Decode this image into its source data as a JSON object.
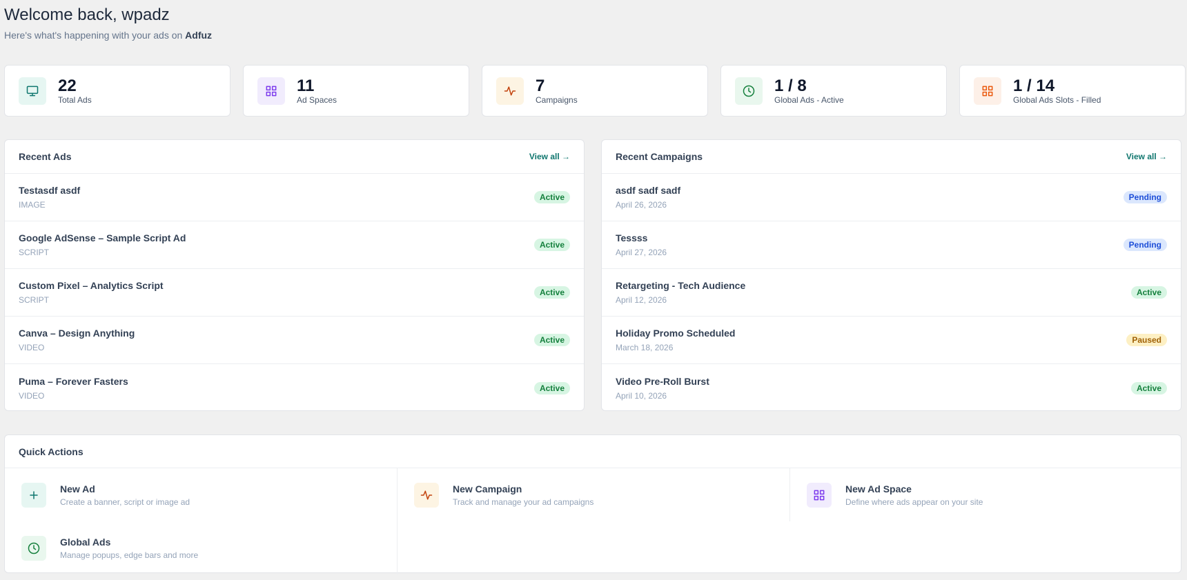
{
  "header": {
    "title": "Welcome back, wpadz",
    "subtitle": "Here's what's happening with your ads on",
    "brand": "Adfuz"
  },
  "stats": [
    {
      "value": 22,
      "label": "Total Ads",
      "color": "#0f766e",
      "bg": "#e6f6f2"
    },
    {
      "value": 11,
      "label": "Ad Spaces",
      "color": "#7c3aed",
      "bg": "#f1ecfd"
    },
    {
      "value": 7,
      "label": "Campaigns",
      "color": "#c2410c",
      "bg": "#fdf4e3"
    },
    {
      "value": "1 / 8",
      "label": "Global Ads - Active",
      "color": "#15803d",
      "bg": "#e9f7ee"
    },
    {
      "value": "1 / 14",
      "label": "Global Ads Slots - Filled",
      "color": "#ea580c",
      "bg": "#fdf0e8"
    }
  ],
  "recent_ads": {
    "title": "Recent Ads",
    "link": "View all →",
    "items": [
      {
        "name": "Testasdf asdf",
        "meta": "IMAGE",
        "status": "Active",
        "status_color": "#15803d",
        "status_bg": "#d7f5e3"
      },
      {
        "name": "Google AdSense – Sample Script Ad",
        "meta": "SCRIPT",
        "status": "Active",
        "status_color": "#15803d",
        "status_bg": "#d7f5e3"
      },
      {
        "name": "Custom Pixel – Analytics Script",
        "meta": "SCRIPT",
        "status": "Active",
        "status_color": "#15803d",
        "status_bg": "#d7f5e3"
      },
      {
        "name": "Canva – Design Anything",
        "meta": "VIDEO",
        "status": "Active",
        "status_color": "#15803d",
        "status_bg": "#d7f5e3"
      },
      {
        "name": "Puma – Forever Fasters",
        "meta": "VIDEO",
        "status": "Active",
        "status_color": "#15803d",
        "status_bg": "#d7f5e3"
      }
    ]
  },
  "recent_campaigns": {
    "title": "Recent Campaigns",
    "link": "View all →",
    "items": [
      {
        "name": "asdf sadf sadf",
        "meta": "April 26, 2026",
        "status": "Pending",
        "status_color": "#1d4ed8",
        "status_bg": "#dbe7fd"
      },
      {
        "name": "Tessss",
        "meta": "April 27, 2026",
        "status": "Pending",
        "status_color": "#1d4ed8",
        "status_bg": "#dbe7fd"
      },
      {
        "name": "Retargeting - Tech Audience",
        "meta": "April 12, 2026",
        "status": "Active",
        "status_color": "#15803d",
        "status_bg": "#d7f5e3"
      },
      {
        "name": "Holiday Promo Scheduled",
        "meta": "March 18, 2026",
        "status": "Paused",
        "status_color": "#a16207",
        "status_bg": "#fdf0c4"
      },
      {
        "name": "Video Pre-Roll Burst",
        "meta": "April 10, 2026",
        "status": "Active",
        "status_color": "#15803d",
        "status_bg": "#d7f5e3"
      }
    ]
  },
  "quick_actions": {
    "title": "Quick Actions",
    "items": [
      {
        "title": "New Ad",
        "description": "Create a banner, script or image ad",
        "color": "#0f766e",
        "bg": "#e6f6f2"
      },
      {
        "title": "New Campaign",
        "description": "Track and manage your ad campaigns",
        "color": "#c2410c",
        "bg": "#fdf4e3"
      },
      {
        "title": "New Ad Space",
        "description": "Define where ads appear on your site",
        "color": "#7c3aed",
        "bg": "#f1ecfd"
      },
      {
        "title": "Global Ads",
        "description": "Manage popups, edge bars and more",
        "color": "#15803d",
        "bg": "#e9f7ee"
      }
    ]
  }
}
